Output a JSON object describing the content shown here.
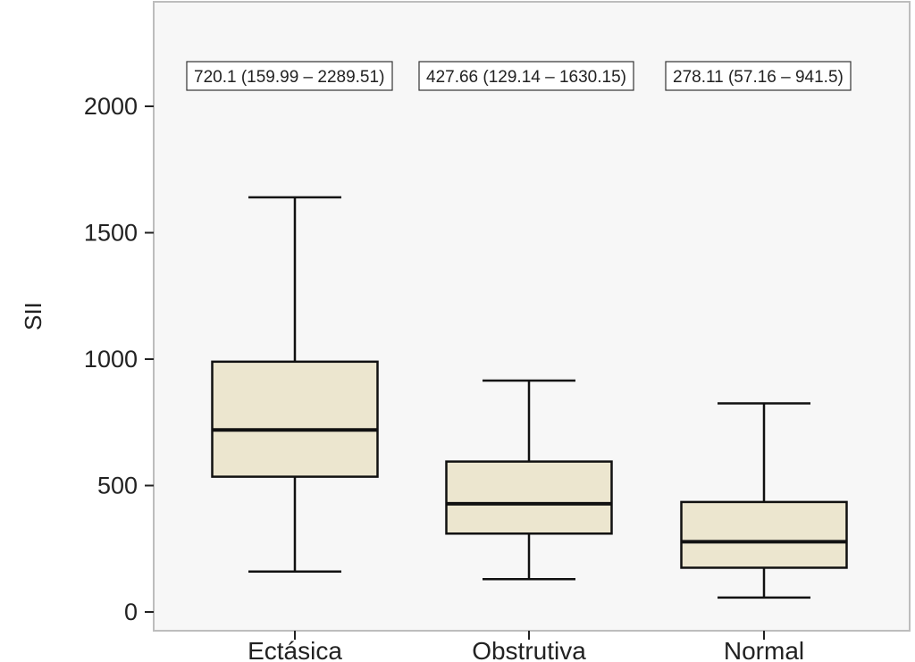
{
  "chart_data": {
    "type": "box",
    "ylabel": "SII",
    "xlabel": "",
    "ylim": [
      -40,
      2400
    ],
    "yticks": [
      0,
      500,
      1000,
      1500,
      2000
    ],
    "grid": false,
    "colors": {
      "box_fill": "#ece6cf",
      "plot_bg": "#f7f7f7",
      "frame": "#bdbdbd",
      "stroke": "#111111"
    },
    "categories": [
      "Ectásica",
      "Obstrutiva",
      "Normal"
    ],
    "boxes": [
      {
        "category": "Ectásica",
        "whisker_low": 160,
        "q1": 535,
        "median": 720,
        "q3": 990,
        "whisker_high": 1640
      },
      {
        "category": "Obstrutiva",
        "whisker_low": 130,
        "q1": 310,
        "median": 428,
        "q3": 595,
        "whisker_high": 915
      },
      {
        "category": "Normal",
        "whisker_low": 57,
        "q1": 175,
        "median": 278,
        "q3": 435,
        "whisker_high": 825
      }
    ],
    "annotations": [
      "720.1 (159.99 – 2289.51)",
      "427.66 (129.14 – 1630.15)",
      "278.11 (57.16 – 941.5)"
    ]
  }
}
